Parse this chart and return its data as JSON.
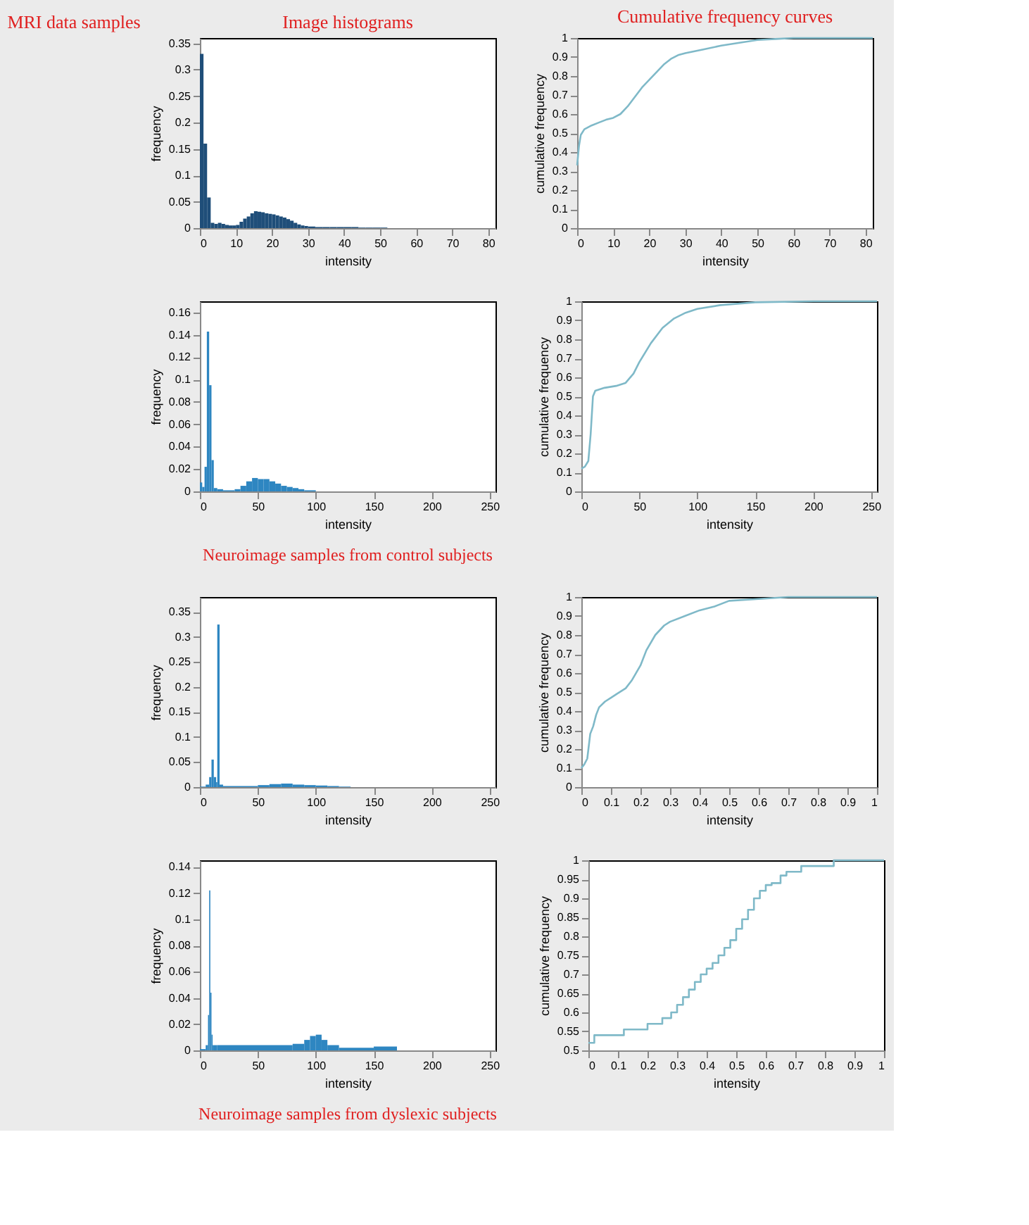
{
  "chart_data": [
    {
      "type": "other",
      "title": "MRI data samples"
    },
    {
      "type": "histogram",
      "title": "Image histograms",
      "xlabel": "intensity",
      "ylabel": "frequency",
      "color": "#1f4e79",
      "bins": [
        0,
        1,
        2,
        3,
        4,
        5,
        6,
        7,
        8,
        9,
        10,
        11,
        12,
        13,
        14,
        15,
        16,
        17,
        18,
        19,
        20,
        21,
        22,
        23,
        24,
        25,
        26,
        27,
        28,
        29,
        30,
        32,
        34,
        36,
        38,
        40,
        42,
        44,
        46,
        48,
        50,
        52
      ],
      "values": [
        0.33,
        0.16,
        0.058,
        0.01,
        0.008,
        0.01,
        0.008,
        0.006,
        0.005,
        0.005,
        0.006,
        0.012,
        0.018,
        0.022,
        0.028,
        0.032,
        0.031,
        0.03,
        0.028,
        0.027,
        0.026,
        0.024,
        0.022,
        0.02,
        0.017,
        0.014,
        0.01,
        0.007,
        0.005,
        0.004,
        0.003,
        0.002,
        0.002,
        0.002,
        0.002,
        0.002,
        0.002,
        0.001,
        0.001,
        0.001,
        0.001
      ],
      "xlim": [
        0,
        82
      ],
      "xticks": [
        0,
        10,
        20,
        30,
        40,
        50,
        60,
        70,
        80
      ],
      "ylim": [
        0,
        0.36
      ],
      "yticks": [
        0,
        0.05,
        0.1,
        0.15,
        0.2,
        0.25,
        0.3,
        0.35
      ]
    },
    {
      "type": "line",
      "title": "Cumulative frequency curves",
      "xlabel": "intensity",
      "ylabel": "cumulative frequency",
      "color": "#7fb9c8",
      "x": [
        0,
        0.5,
        1,
        2,
        4,
        6,
        8,
        10,
        12,
        14,
        16,
        18,
        20,
        22,
        24,
        26,
        28,
        30,
        35,
        40,
        45,
        50,
        55,
        60,
        82
      ],
      "values": [
        0.33,
        0.43,
        0.49,
        0.52,
        0.54,
        0.555,
        0.57,
        0.58,
        0.6,
        0.64,
        0.69,
        0.74,
        0.78,
        0.82,
        0.86,
        0.89,
        0.91,
        0.92,
        0.94,
        0.96,
        0.975,
        0.99,
        0.995,
        1,
        1
      ],
      "xlim": [
        0,
        82
      ],
      "xticks": [
        0,
        10,
        20,
        30,
        40,
        50,
        60,
        70,
        80
      ],
      "ylim": [
        0,
        1
      ],
      "yticks": [
        0,
        0.1,
        0.2,
        0.3,
        0.4,
        0.5,
        0.6,
        0.7,
        0.8,
        0.9,
        1
      ]
    },
    {
      "type": "histogram",
      "xlabel": "intensity",
      "ylabel": "frequency",
      "color": "#2e86c1",
      "annotations": [
        "Neuroimage samples from control subjects"
      ],
      "bins": [
        0,
        2,
        4,
        6,
        8,
        10,
        12,
        15,
        20,
        30,
        35,
        40,
        45,
        50,
        55,
        60,
        65,
        70,
        75,
        80,
        85,
        90,
        100
      ],
      "values": [
        0.008,
        0.004,
        0.022,
        0.143,
        0.095,
        0.028,
        0.003,
        0.002,
        0.001,
        0.002,
        0.005,
        0.009,
        0.012,
        0.011,
        0.011,
        0.009,
        0.007,
        0.005,
        0.004,
        0.003,
        0.002,
        0.001
      ],
      "xlim": [
        0,
        255
      ],
      "xticks": [
        0,
        50,
        100,
        150,
        200,
        250
      ],
      "ylim": [
        0,
        0.17
      ],
      "yticks": [
        0,
        0.02,
        0.04,
        0.06,
        0.08,
        0.1,
        0.12,
        0.14,
        0.16
      ]
    },
    {
      "type": "line",
      "xlabel": "intensity",
      "ylabel": "cumulative frequency",
      "color": "#7fb9c8",
      "x": [
        0,
        3,
        6,
        8,
        10,
        12,
        20,
        30,
        38,
        45,
        50,
        60,
        70,
        80,
        90,
        100,
        120,
        150,
        200,
        255
      ],
      "values": [
        0.12,
        0.13,
        0.16,
        0.3,
        0.5,
        0.53,
        0.545,
        0.555,
        0.57,
        0.62,
        0.68,
        0.78,
        0.86,
        0.91,
        0.94,
        0.96,
        0.98,
        0.995,
        1,
        1
      ],
      "xlim": [
        0,
        255
      ],
      "xticks": [
        0,
        50,
        100,
        150,
        200,
        250
      ],
      "ylim": [
        0,
        1
      ],
      "yticks": [
        0,
        0.1,
        0.2,
        0.3,
        0.4,
        0.5,
        0.6,
        0.7,
        0.8,
        0.9,
        1
      ]
    },
    {
      "type": "histogram",
      "xlabel": "intensity",
      "ylabel": "frequency",
      "color": "#2e86c1",
      "bins": [
        0,
        5,
        8,
        10,
        12,
        14,
        15,
        17,
        20,
        50,
        60,
        70,
        80,
        90,
        100,
        110,
        120,
        130
      ],
      "values": [
        0.001,
        0.005,
        0.02,
        0.055,
        0.02,
        0.01,
        0.325,
        0.005,
        0.002,
        0.004,
        0.006,
        0.007,
        0.005,
        0.004,
        0.003,
        0.002,
        0.001
      ],
      "xlim": [
        0,
        255
      ],
      "xticks": [
        0,
        50,
        100,
        150,
        200,
        250
      ],
      "ylim": [
        0,
        0.38
      ],
      "yticks": [
        0,
        0.05,
        0.1,
        0.15,
        0.2,
        0.25,
        0.3,
        0.35
      ]
    },
    {
      "type": "line",
      "xlabel": "intensity",
      "ylabel": "cumulative frequency",
      "color": "#7fb9c8",
      "x": [
        0,
        0.01,
        0.02,
        0.03,
        0.04,
        0.05,
        0.06,
        0.08,
        0.1,
        0.12,
        0.15,
        0.17,
        0.2,
        0.22,
        0.25,
        0.28,
        0.3,
        0.35,
        0.4,
        0.45,
        0.5,
        0.6,
        0.7,
        1
      ],
      "values": [
        0.1,
        0.12,
        0.15,
        0.28,
        0.32,
        0.38,
        0.42,
        0.45,
        0.47,
        0.49,
        0.52,
        0.56,
        0.64,
        0.72,
        0.8,
        0.85,
        0.87,
        0.9,
        0.93,
        0.95,
        0.98,
        0.99,
        1,
        1
      ],
      "xlim": [
        0,
        1
      ],
      "xticks": [
        0,
        0.1,
        0.2,
        0.3,
        0.4,
        0.5,
        0.6,
        0.7,
        0.8,
        0.9,
        1
      ],
      "ylim": [
        0,
        1
      ],
      "yticks": [
        0,
        0.1,
        0.2,
        0.3,
        0.4,
        0.5,
        0.6,
        0.7,
        0.8,
        0.9,
        1
      ]
    },
    {
      "type": "histogram",
      "xlabel": "intensity",
      "ylabel": "frequency",
      "color": "#2e86c1",
      "annotations": [
        "Neuroimage samples from dyslexic subjects"
      ],
      "bins": [
        0,
        5,
        7,
        8,
        9,
        10,
        11,
        15,
        80,
        90,
        95,
        100,
        105,
        110,
        120,
        150,
        170
      ],
      "values": [
        0.001,
        0.004,
        0.027,
        0.122,
        0.044,
        0.012,
        0.004,
        0.004,
        0.005,
        0.008,
        0.011,
        0.012,
        0.008,
        0.004,
        0.002,
        0.003
      ],
      "xlim": [
        0,
        255
      ],
      "xticks": [
        0,
        50,
        100,
        150,
        200,
        250
      ],
      "ylim": [
        0,
        0.145
      ],
      "yticks": [
        0,
        0.02,
        0.04,
        0.06,
        0.08,
        0.1,
        0.12,
        0.14
      ]
    },
    {
      "type": "step",
      "xlabel": "intensity",
      "ylabel": "cumulative frequency",
      "color": "#7fb9c8",
      "x": [
        0,
        0.02,
        0.12,
        0.2,
        0.25,
        0.28,
        0.3,
        0.32,
        0.34,
        0.36,
        0.38,
        0.4,
        0.42,
        0.44,
        0.46,
        0.48,
        0.5,
        0.52,
        0.54,
        0.56,
        0.58,
        0.6,
        0.62,
        0.65,
        0.67,
        0.72,
        0.83,
        1
      ],
      "values": [
        0.52,
        0.54,
        0.555,
        0.57,
        0.585,
        0.6,
        0.62,
        0.64,
        0.66,
        0.68,
        0.7,
        0.715,
        0.73,
        0.75,
        0.77,
        0.79,
        0.82,
        0.845,
        0.87,
        0.9,
        0.92,
        0.935,
        0.94,
        0.96,
        0.97,
        0.985,
        1,
        1
      ],
      "xlim": [
        0,
        1
      ],
      "xticks": [
        0,
        0.1,
        0.2,
        0.3,
        0.4,
        0.5,
        0.6,
        0.7,
        0.8,
        0.9,
        1
      ],
      "ylim": [
        0.5,
        1
      ],
      "yticks": [
        0.5,
        0.55,
        0.6,
        0.65,
        0.7,
        0.75,
        0.8,
        0.85,
        0.9,
        0.95,
        1
      ]
    }
  ]
}
